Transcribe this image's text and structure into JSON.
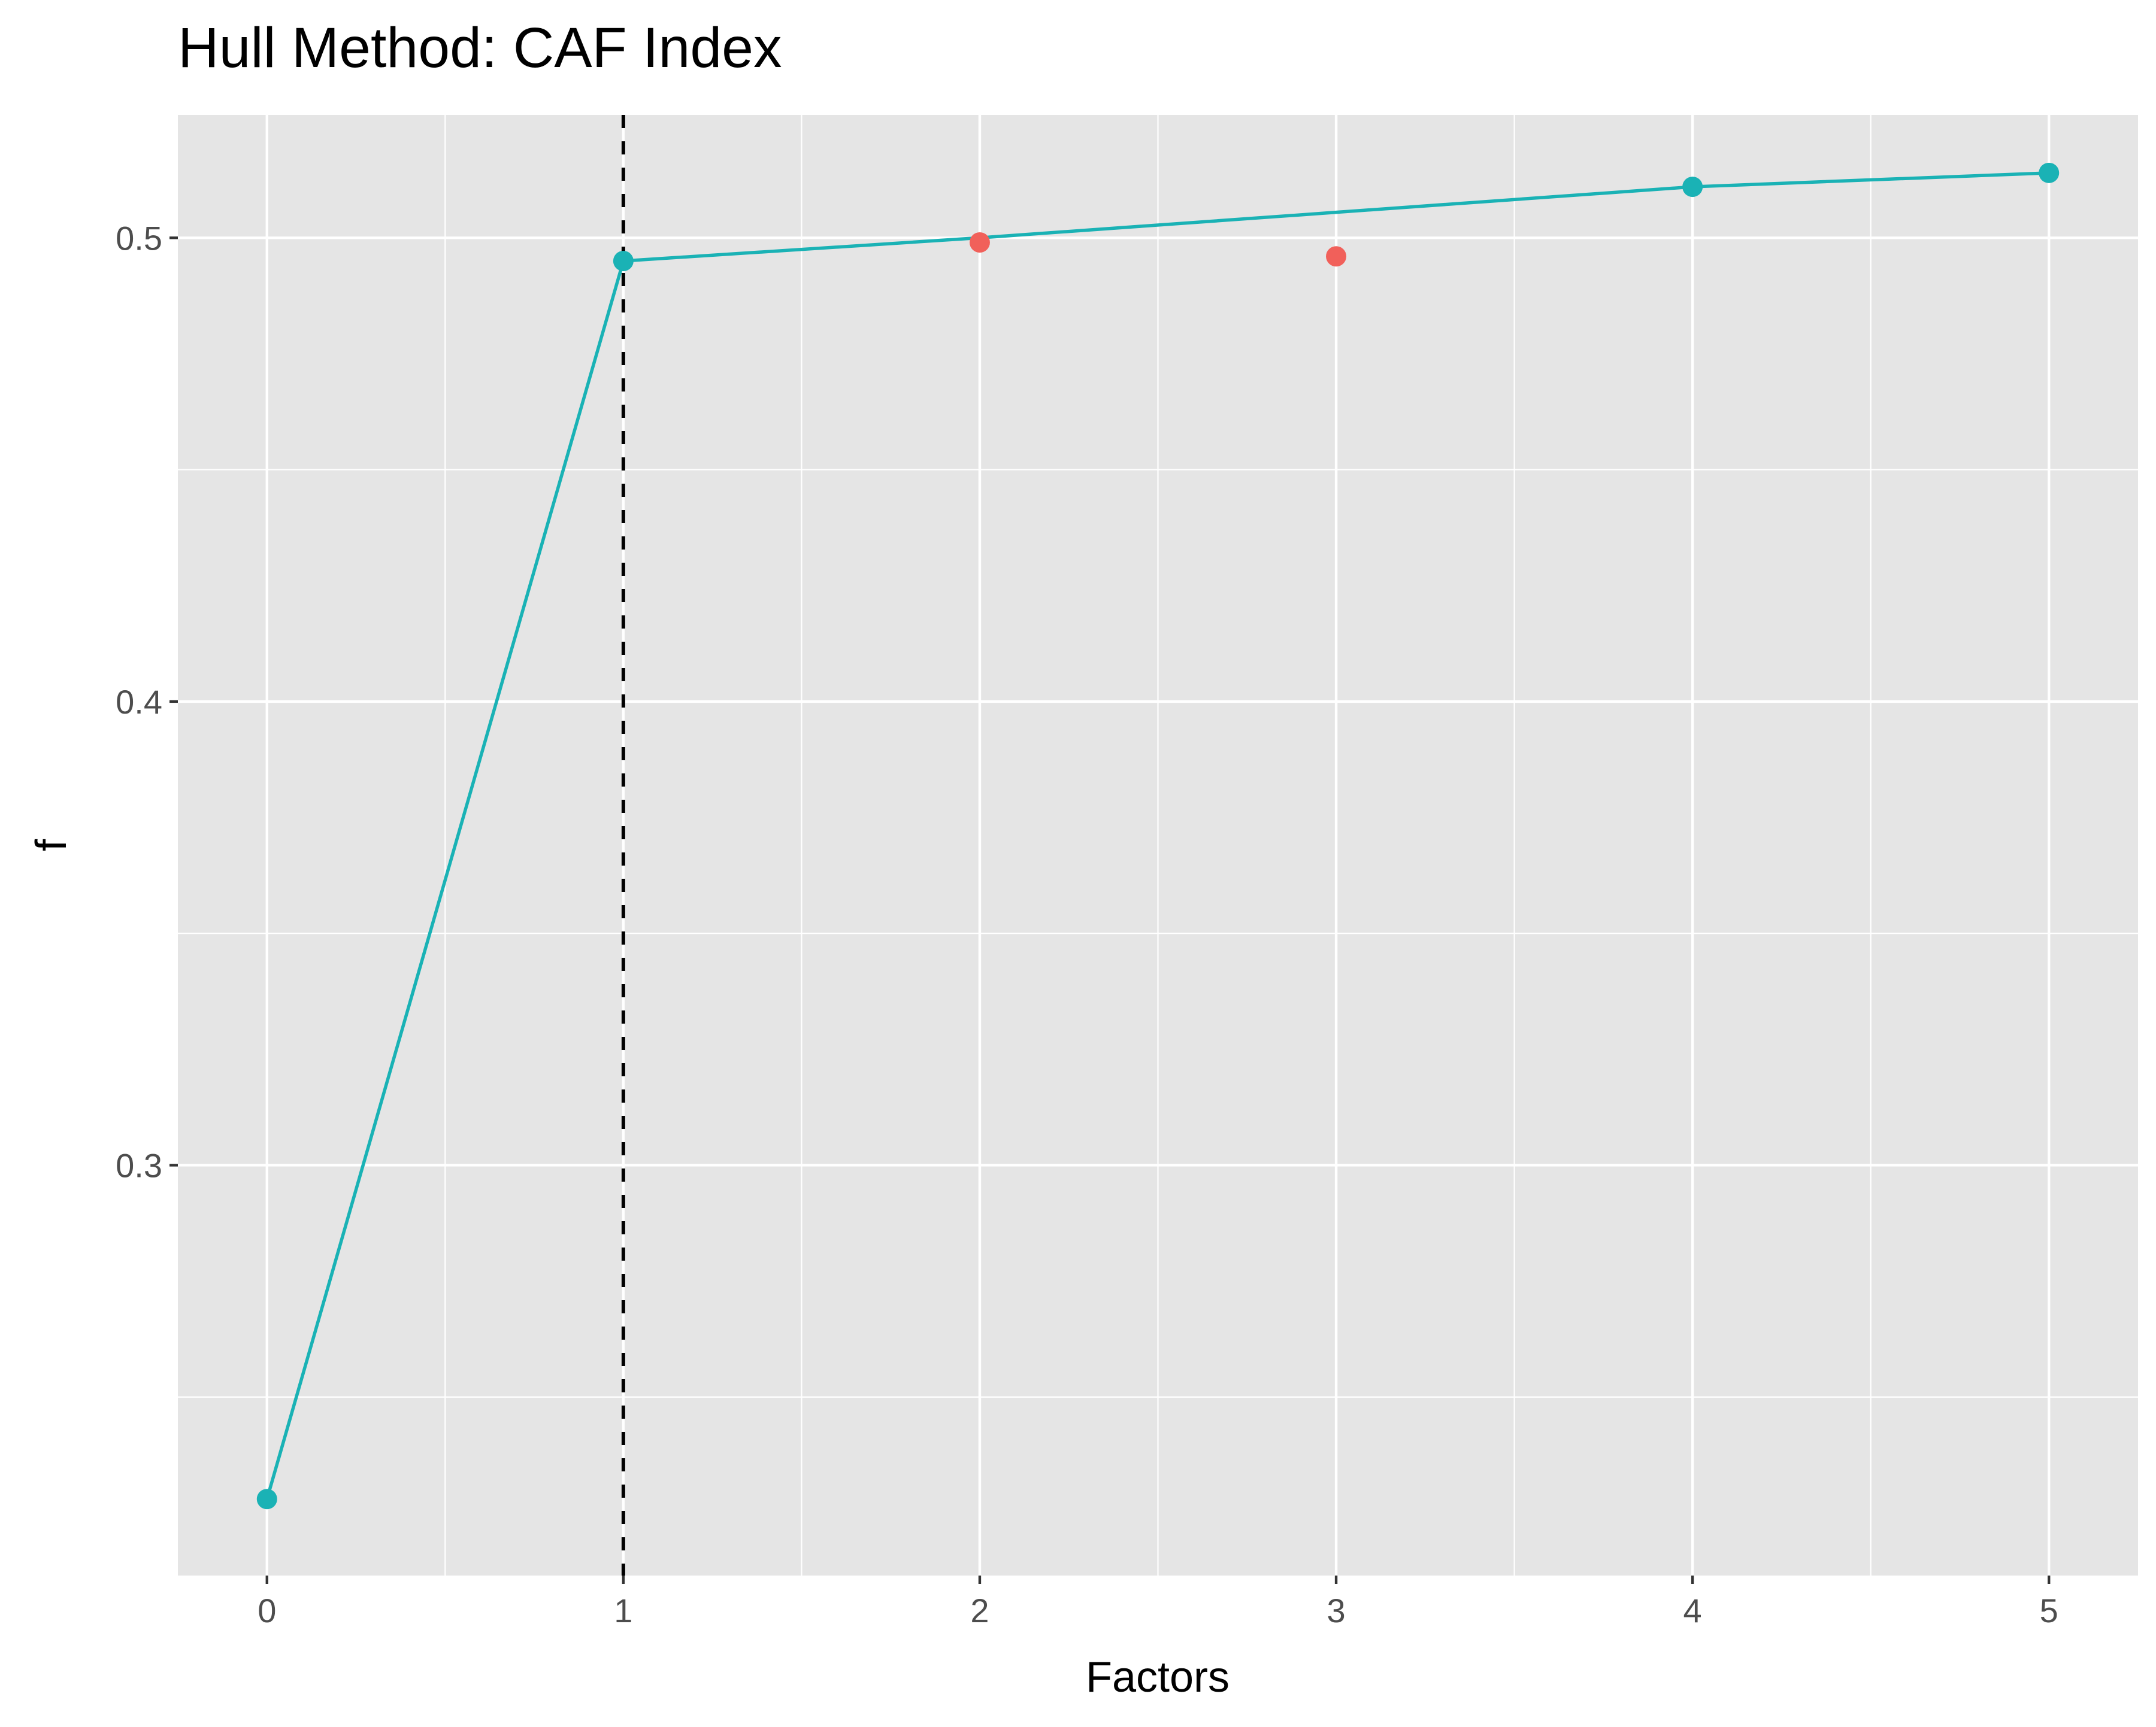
{
  "chart_data": {
    "type": "scatter",
    "title": "Hull Method: CAF Index",
    "xlabel": "Factors",
    "ylabel": "f",
    "xlim": [
      -0.25,
      5.25
    ],
    "ylim": [
      0.2115,
      0.5265
    ],
    "x_ticks": [
      0,
      1,
      2,
      3,
      4,
      5
    ],
    "x_tick_labels": [
      "0",
      "1",
      "2",
      "3",
      "4",
      "5"
    ],
    "y_ticks": [
      0.3,
      0.4,
      0.5
    ],
    "y_tick_labels": [
      "0.3",
      "0.4",
      "0.5"
    ],
    "grid": true,
    "legend": "none",
    "vline": {
      "x": 1,
      "style": "dashed",
      "color": "#000000"
    },
    "series": [
      {
        "role": "hull",
        "color": "#1AB2B5",
        "connected": true,
        "points": [
          {
            "x": 0,
            "y": 0.228
          },
          {
            "x": 1,
            "y": 0.495
          },
          {
            "x": 4,
            "y": 0.511
          },
          {
            "x": 5,
            "y": 0.514
          }
        ]
      },
      {
        "role": "off-hull",
        "color": "#F1605A",
        "connected": false,
        "points": [
          {
            "x": 2,
            "y": 0.499
          },
          {
            "x": 3,
            "y": 0.496
          }
        ]
      }
    ],
    "hull_line": [
      {
        "x": 0,
        "y": 0.228
      },
      {
        "x": 1,
        "y": 0.495
      },
      {
        "x": 2,
        "y": 0.5
      },
      {
        "x": 3,
        "y": 0.5055
      },
      {
        "x": 4,
        "y": 0.511
      },
      {
        "x": 5,
        "y": 0.514
      }
    ],
    "panel_color": "#E5E5E5",
    "grid_color": "#FFFFFF"
  }
}
